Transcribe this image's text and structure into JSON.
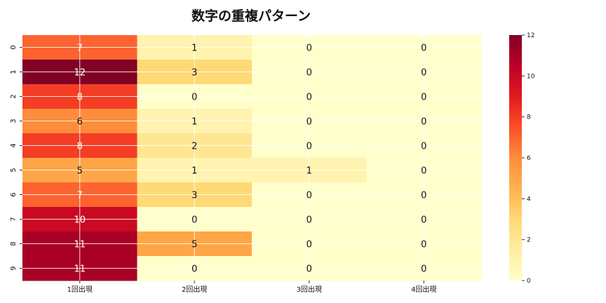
{
  "chart_data": {
    "type": "heatmap",
    "title": "数字の重複パターン",
    "xlabel": "",
    "ylabel": "",
    "x_categories": [
      "1回出現",
      "2回出現",
      "3回出現",
      "4回出現"
    ],
    "y_categories": [
      "0",
      "1",
      "2",
      "3",
      "4",
      "5",
      "6",
      "7",
      "8",
      "9"
    ],
    "values": [
      [
        7,
        1,
        0,
        0
      ],
      [
        12,
        3,
        0,
        0
      ],
      [
        8,
        0,
        0,
        0
      ],
      [
        6,
        1,
        0,
        0
      ],
      [
        8,
        2,
        0,
        0
      ],
      [
        5,
        1,
        1,
        0
      ],
      [
        7,
        3,
        0,
        0
      ],
      [
        10,
        0,
        0,
        0
      ],
      [
        11,
        5,
        0,
        0
      ],
      [
        11,
        0,
        0,
        0
      ]
    ],
    "colormap": "YlOrRd",
    "value_range": [
      0,
      12
    ],
    "colorbar_ticks": [
      0,
      2,
      4,
      6,
      8,
      10,
      12
    ],
    "grid": true,
    "colorbar_position": "right"
  }
}
